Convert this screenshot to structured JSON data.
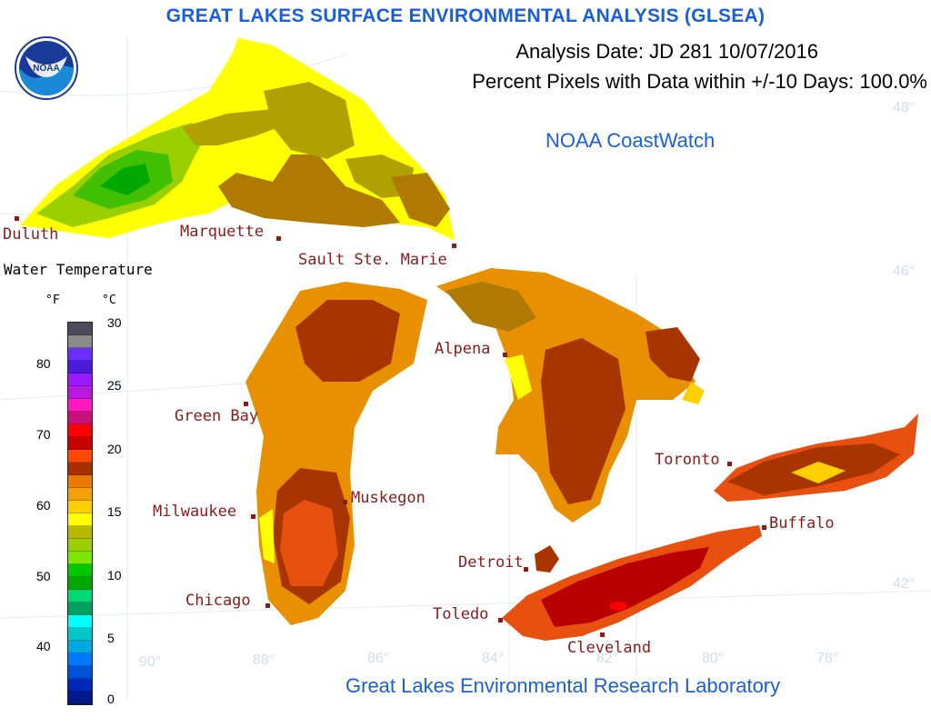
{
  "title": "GREAT LAKES SURFACE ENVIRONMENTAL ANALYSIS (GLSEA)",
  "analysis_date": "Analysis Date:  JD 281 10/07/2016",
  "percent_pixels": "Percent Pixels with Data within +/-10 Days: 100.0%",
  "agency": "NOAA CoastWatch",
  "lab": "Great Lakes Environmental Research Laboratory",
  "logo_text": "NOAA",
  "legend": {
    "title": "Water Temperature",
    "unit_f": "°F",
    "unit_c": "°C",
    "f_ticks": [
      "80",
      "70",
      "60",
      "50",
      "40"
    ],
    "c_ticks": [
      "30",
      "25",
      "20",
      "15",
      "10",
      "5",
      "0"
    ],
    "colors": [
      "#4a4a5a",
      "#8a8a8a",
      "#6a2cff",
      "#4a1ad8",
      "#9a1aff",
      "#b81ae0",
      "#ff1ac0",
      "#c8107a",
      "#ff0000",
      "#c80000",
      "#ff4a00",
      "#a83000",
      "#e87a00",
      "#f4a000",
      "#ffd000",
      "#ffff00",
      "#b8b800",
      "#9ad000",
      "#78e800",
      "#00c800",
      "#00a800",
      "#00d878",
      "#00a060",
      "#00ffff",
      "#00c8c8",
      "#00a8e0",
      "#0078ff",
      "#0050d8",
      "#0028b8",
      "#001a8a"
    ]
  },
  "cities": {
    "duluth": "Duluth",
    "marquette": "Marquette",
    "sault": "Sault Ste. Marie",
    "green_bay": "Green Bay",
    "milwaukee": "Milwaukee",
    "chicago": "Chicago",
    "muskegon": "Muskegon",
    "alpena": "Alpena",
    "detroit": "Detroit",
    "toledo": "Toledo",
    "cleveland": "Cleveland",
    "toronto": "Toronto",
    "buffalo": "Buffalo"
  },
  "graticule": {
    "lat_48": "48°",
    "lat_46": "46°",
    "lat_42": "42°",
    "lon_90": "90°",
    "lon_88": "88°",
    "lon_86": "86°",
    "lon_84": "84°",
    "lon_82": "82°",
    "lon_80": "80°",
    "lon_78": "78°"
  }
}
